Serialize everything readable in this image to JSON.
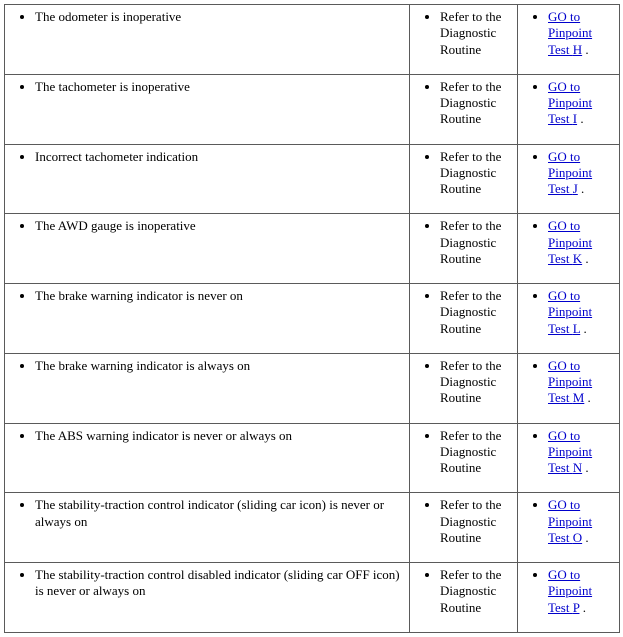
{
  "diagnostic_text": "Refer to the Diagnostic Routine",
  "goto_prefix": "GO to ",
  "goto_link_text": "Pinpoint Test ",
  "goto_suffix": " .",
  "rows": [
    {
      "symptom": "The odometer is inoperative",
      "letter": "H"
    },
    {
      "symptom": "The tachometer is inoperative",
      "letter": "I"
    },
    {
      "symptom": "Incorrect tachometer indication",
      "letter": "J"
    },
    {
      "symptom": "The AWD gauge is inoperative",
      "letter": "K"
    },
    {
      "symptom": "The brake warning indicator is never on",
      "letter": "L"
    },
    {
      "symptom": "The brake warning indicator is always on",
      "letter": "M"
    },
    {
      "symptom": "The ABS warning indicator is never or always on",
      "letter": "N"
    },
    {
      "symptom": "The stability-traction control indicator (sliding car icon) is never or always on",
      "letter": "O"
    },
    {
      "symptom": "The stability-traction control disabled indicator (sliding car OFF icon) is never or always on",
      "letter": "P"
    }
  ],
  "colors": {
    "text": "#000000",
    "link": "#0000cc",
    "border": "#5a5a5a",
    "background": "#ffffff"
  }
}
